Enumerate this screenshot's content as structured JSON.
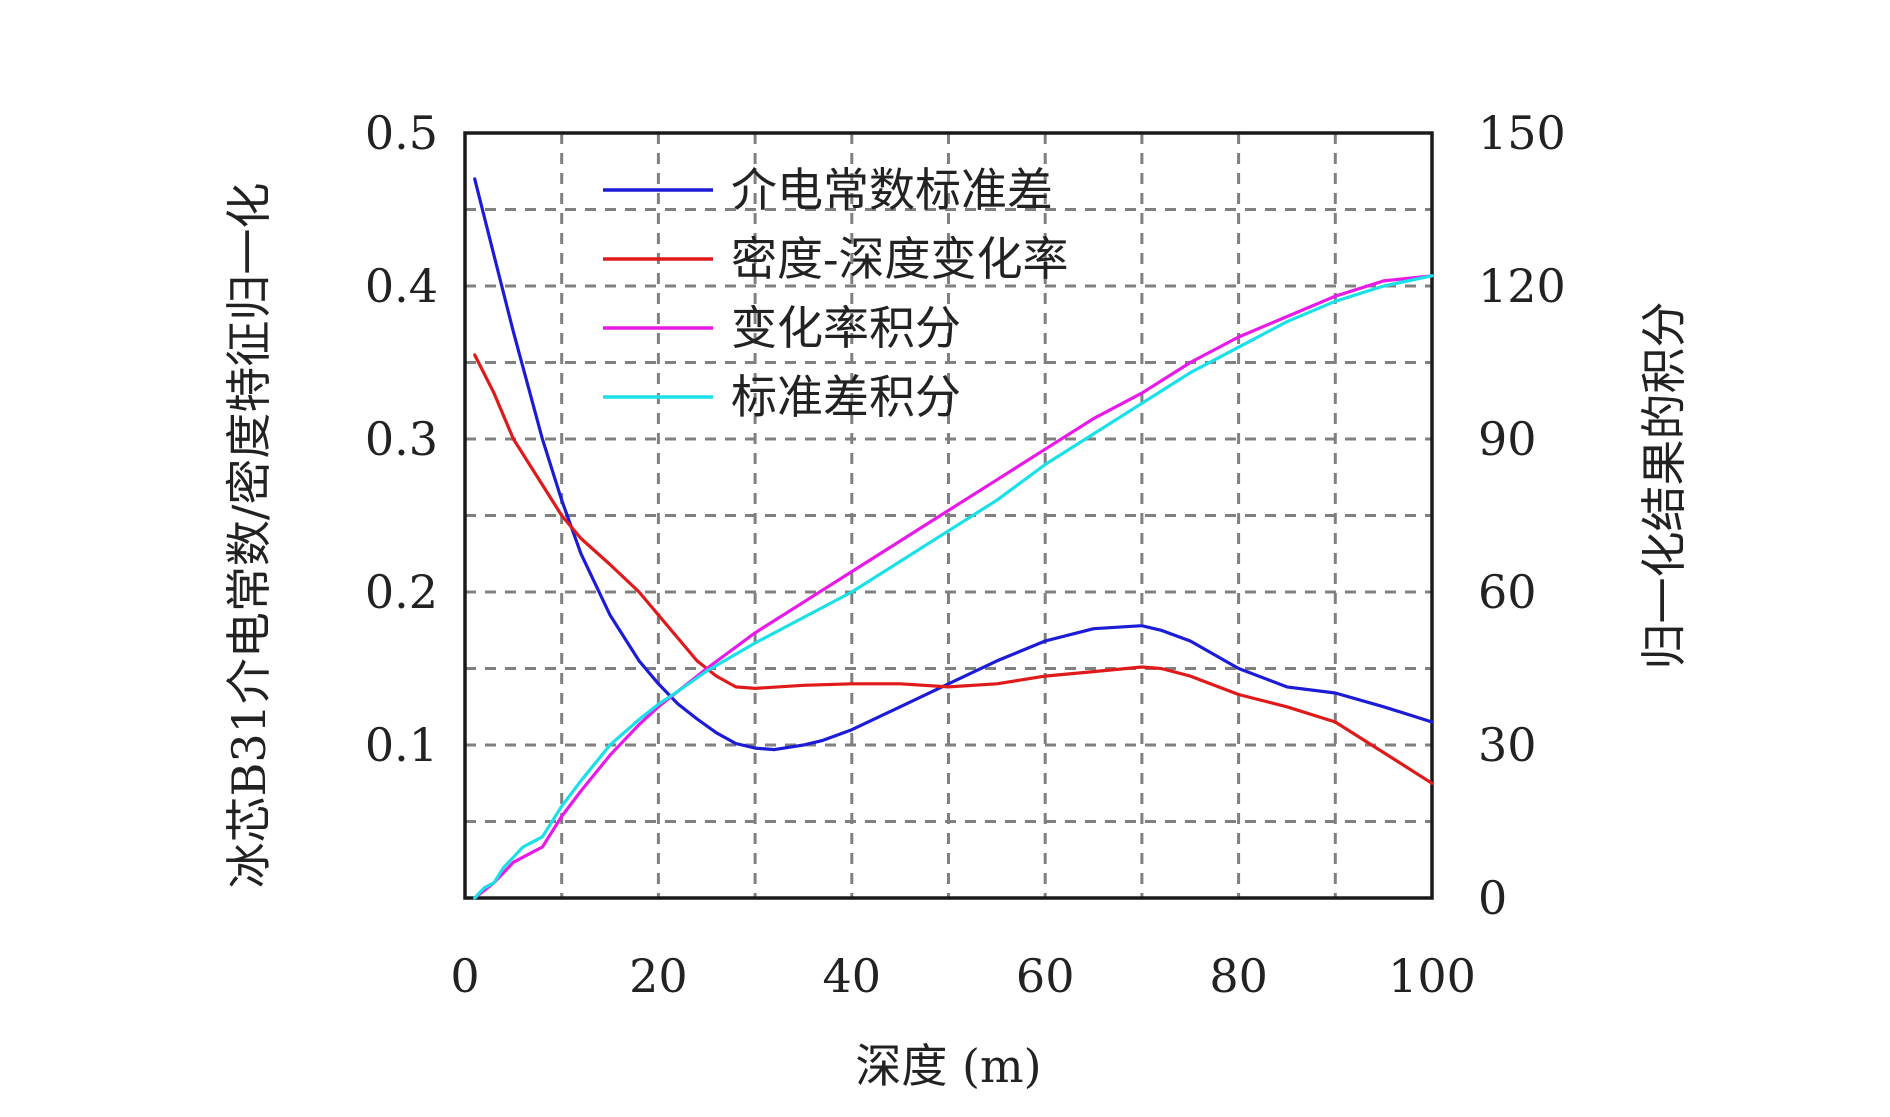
{
  "chart_data": {
    "type": "line",
    "x_axis": {
      "label": "深度 (m)",
      "ticks": [
        0,
        20,
        40,
        60,
        80,
        100
      ],
      "range": [
        0,
        100
      ]
    },
    "y_left_axis": {
      "label": "冰芯B31介电常数/密度特征归一化",
      "ticks": [
        "0.1",
        "0.2",
        "0.3",
        "0.4",
        "0.5"
      ],
      "range": [
        0,
        0.5
      ]
    },
    "y_right_axis": {
      "label": "归一化结果的积分",
      "ticks": [
        "0",
        "30",
        "60",
        "90",
        "120",
        "150"
      ],
      "range": [
        0,
        150
      ]
    },
    "grid": true,
    "legend_position": "top-left",
    "series": [
      {
        "name": "介电常数标准差",
        "color": "#1c1cd6",
        "axis": "left",
        "x": [
          1,
          3,
          5,
          8,
          10,
          12,
          15,
          18,
          20,
          22,
          24,
          26,
          28,
          30,
          32,
          33,
          35,
          37,
          40,
          45,
          50,
          55,
          60,
          65,
          70,
          72,
          75,
          80,
          85,
          90,
          95,
          100
        ],
        "values": [
          0.47,
          0.42,
          0.37,
          0.3,
          0.26,
          0.225,
          0.185,
          0.155,
          0.14,
          0.127,
          0.117,
          0.108,
          0.101,
          0.098,
          0.097,
          0.098,
          0.1,
          0.103,
          0.11,
          0.125,
          0.14,
          0.155,
          0.168,
          0.176,
          0.178,
          0.175,
          0.168,
          0.15,
          0.138,
          0.134,
          0.125,
          0.115
        ]
      },
      {
        "name": "密度-深度变化率",
        "color": "#e01a1a",
        "axis": "left",
        "x": [
          1,
          3,
          5,
          8,
          10,
          12,
          15,
          18,
          20,
          22,
          24,
          26,
          28,
          30,
          35,
          40,
          45,
          50,
          55,
          60,
          65,
          70,
          72,
          75,
          80,
          85,
          90,
          95,
          100
        ],
        "values": [
          0.355,
          0.33,
          0.3,
          0.27,
          0.25,
          0.235,
          0.218,
          0.2,
          0.185,
          0.17,
          0.155,
          0.145,
          0.138,
          0.137,
          0.139,
          0.14,
          0.14,
          0.138,
          0.14,
          0.145,
          0.148,
          0.151,
          0.15,
          0.145,
          0.133,
          0.125,
          0.115,
          0.095,
          0.075
        ]
      },
      {
        "name": "变化率积分",
        "color": "#e81ae8",
        "axis": "right",
        "x": [
          1,
          2,
          3,
          4,
          5,
          6,
          7,
          8,
          10,
          12,
          15,
          18,
          20,
          22,
          25,
          30,
          35,
          40,
          45,
          50,
          55,
          60,
          65,
          70,
          75,
          80,
          85,
          90,
          95,
          100
        ],
        "values": [
          0,
          1.5,
          3,
          5,
          7,
          8,
          9,
          10,
          16,
          21,
          28,
          34,
          37.5,
          40.5,
          45,
          52,
          58,
          64,
          70,
          76,
          82,
          88,
          94,
          99,
          105,
          110,
          114,
          118,
          121,
          122
        ]
      },
      {
        "name": "标准差积分",
        "color": "#1ae0e8",
        "axis": "right",
        "x": [
          1,
          2,
          3,
          4,
          5,
          6,
          7,
          8,
          10,
          12,
          15,
          18,
          20,
          22,
          25,
          30,
          35,
          40,
          45,
          50,
          55,
          60,
          65,
          70,
          75,
          80,
          85,
          90,
          95,
          100
        ],
        "values": [
          0,
          2,
          3,
          6,
          8,
          10,
          11,
          12,
          18,
          23,
          30,
          35,
          38,
          40.5,
          44.5,
          50,
          55,
          60,
          66,
          72,
          78,
          85,
          91,
          97,
          103,
          108,
          113,
          117,
          120,
          122
        ]
      }
    ]
  }
}
